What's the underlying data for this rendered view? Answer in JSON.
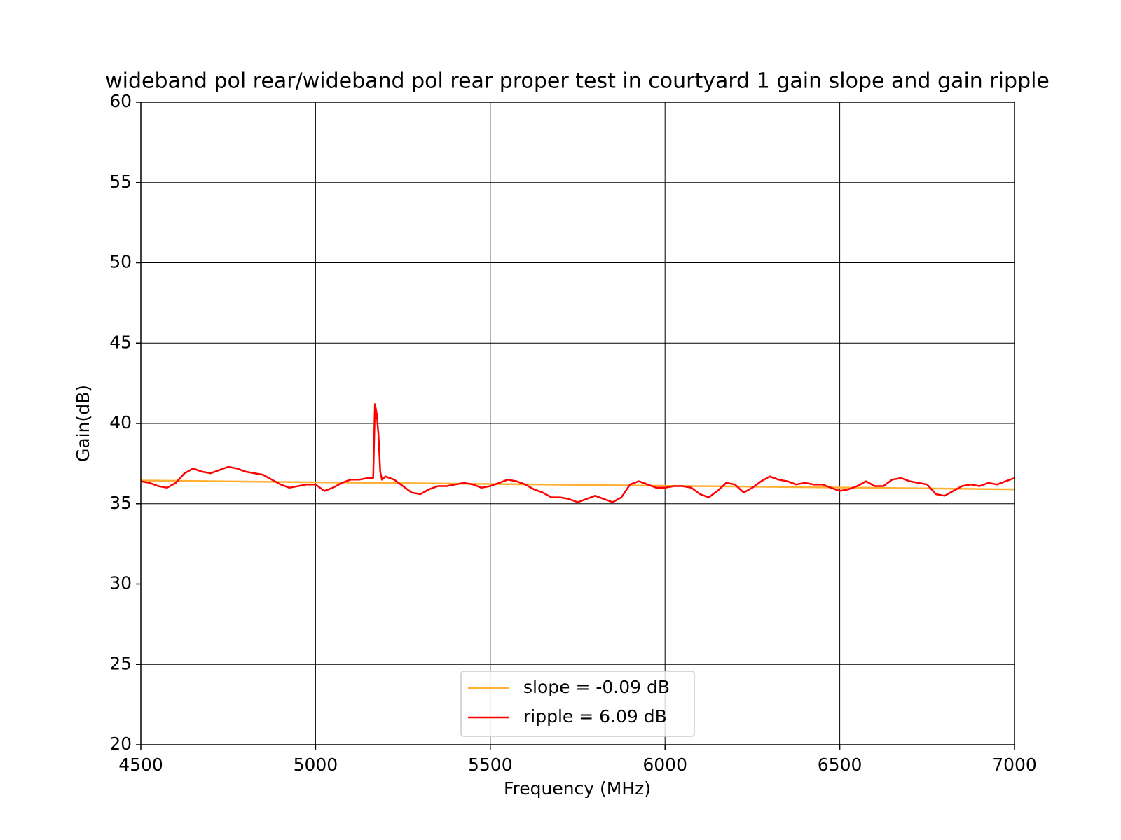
{
  "chart_data": {
    "type": "line",
    "title": "wideband pol rear/wideband pol rear proper test in courtyard 1 gain slope and gain ripple",
    "xlabel": "Frequency (MHz)",
    "ylabel": "Gain(dB)",
    "xlim": [
      4500,
      7000
    ],
    "xticks": [
      4500,
      5000,
      5500,
      6000,
      6500,
      7000
    ],
    "ylim": [
      20,
      60
    ],
    "yticks": [
      20,
      25,
      30,
      35,
      40,
      45,
      50,
      55,
      60
    ],
    "grid": true,
    "legend": "lower center",
    "series": [
      {
        "name": "slope = -0.09 dB",
        "color": "#ffb030",
        "x": [
          4500,
          7000
        ],
        "values": [
          36.45,
          35.9
        ]
      },
      {
        "name": "ripple = 6.09 dB",
        "color": "#ff0000",
        "x": [
          4500,
          4525,
          4550,
          4575,
          4600,
          4625,
          4650,
          4675,
          4700,
          4725,
          4750,
          4775,
          4800,
          4825,
          4850,
          4875,
          4900,
          4925,
          4950,
          4975,
          5000,
          5025,
          5050,
          5075,
          5100,
          5125,
          5150,
          5165,
          5170,
          5175,
          5180,
          5185,
          5190,
          5200,
          5225,
          5250,
          5275,
          5300,
          5325,
          5350,
          5375,
          5400,
          5425,
          5450,
          5475,
          5500,
          5525,
          5550,
          5575,
          5600,
          5625,
          5650,
          5675,
          5700,
          5725,
          5750,
          5775,
          5800,
          5825,
          5850,
          5875,
          5900,
          5925,
          5950,
          5975,
          6000,
          6025,
          6050,
          6075,
          6100,
          6125,
          6150,
          6175,
          6200,
          6225,
          6250,
          6275,
          6300,
          6325,
          6350,
          6375,
          6400,
          6425,
          6450,
          6475,
          6500,
          6525,
          6550,
          6575,
          6600,
          6625,
          6650,
          6675,
          6700,
          6725,
          6750,
          6775,
          6800,
          6825,
          6850,
          6875,
          6900,
          6925,
          6950,
          6975,
          7000
        ],
        "values": [
          36.4,
          36.3,
          36.1,
          36.0,
          36.3,
          36.9,
          37.2,
          37.0,
          36.9,
          37.1,
          37.3,
          37.2,
          37.0,
          36.9,
          36.8,
          36.5,
          36.2,
          36.0,
          36.1,
          36.2,
          36.2,
          35.8,
          36.0,
          36.3,
          36.5,
          36.5,
          36.6,
          36.6,
          41.2,
          40.6,
          39.3,
          37.0,
          36.5,
          36.7,
          36.5,
          36.1,
          35.7,
          35.6,
          35.9,
          36.1,
          36.1,
          36.2,
          36.3,
          36.2,
          36.0,
          36.1,
          36.3,
          36.5,
          36.4,
          36.2,
          35.9,
          35.7,
          35.4,
          35.4,
          35.3,
          35.1,
          35.3,
          35.5,
          35.3,
          35.1,
          35.4,
          36.2,
          36.4,
          36.2,
          36.0,
          36.0,
          36.1,
          36.1,
          36.0,
          35.6,
          35.4,
          35.8,
          36.3,
          36.2,
          35.7,
          36.0,
          36.4,
          36.7,
          36.5,
          36.4,
          36.2,
          36.3,
          36.2,
          36.2,
          36.0,
          35.8,
          35.9,
          36.1,
          36.4,
          36.1,
          36.1,
          36.5,
          36.6,
          36.4,
          36.3,
          36.2,
          35.6,
          35.5,
          35.8,
          36.1,
          36.2,
          36.1,
          36.3,
          36.2,
          36.4,
          36.6
        ]
      }
    ]
  }
}
